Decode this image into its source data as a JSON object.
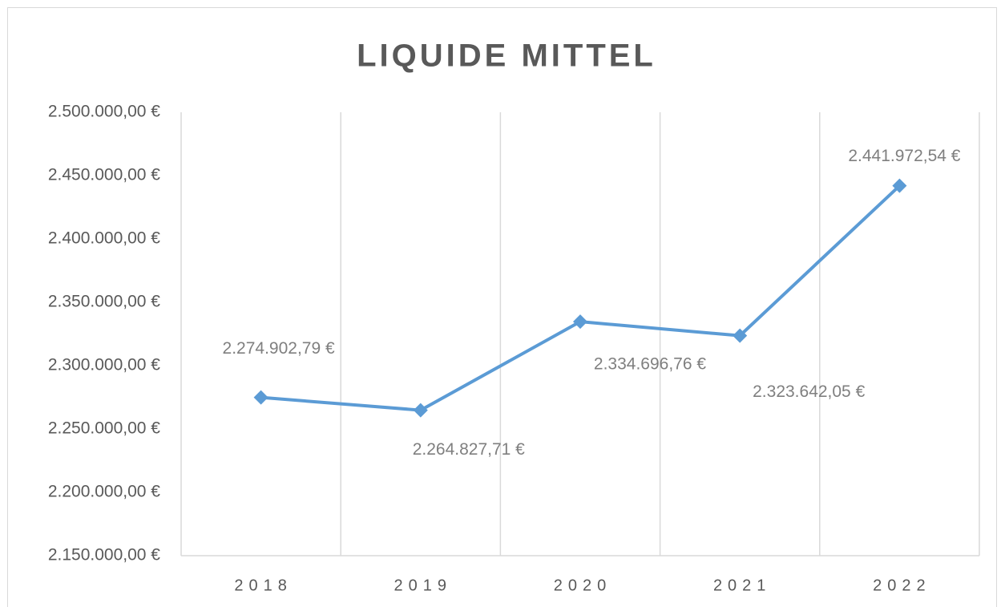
{
  "chart_data": {
    "type": "line",
    "title": "LIQUIDE MITTEL",
    "categories": [
      "2018",
      "2019",
      "2020",
      "2021",
      "2022"
    ],
    "series": [
      {
        "name": "Liquide Mittel",
        "color": "#5b9bd5",
        "values": [
          2274902.79,
          2264827.71,
          2334696.76,
          2323642.05,
          2441972.54
        ],
        "value_labels": [
          "2.274.902,79 €",
          "2.264.827,71 €",
          "2.334.696,76 €",
          "2.323.642,05 €",
          "2.441.972,54 €"
        ]
      }
    ],
    "ylim": [
      2150000,
      2500000
    ],
    "yticks": [
      {
        "value": 2150000,
        "label": "2.150.000,00 €"
      },
      {
        "value": 2200000,
        "label": "2.200.000,00 €"
      },
      {
        "value": 2250000,
        "label": "2.250.000,00 €"
      },
      {
        "value": 2300000,
        "label": "2.300.000,00 €"
      },
      {
        "value": 2350000,
        "label": "2.350.000,00 €"
      },
      {
        "value": 2400000,
        "label": "2.400.000,00 €"
      },
      {
        "value": 2450000,
        "label": "2.450.000,00 €"
      },
      {
        "value": 2500000,
        "label": "2.500.000,00 €"
      }
    ],
    "grid": "vertical"
  }
}
